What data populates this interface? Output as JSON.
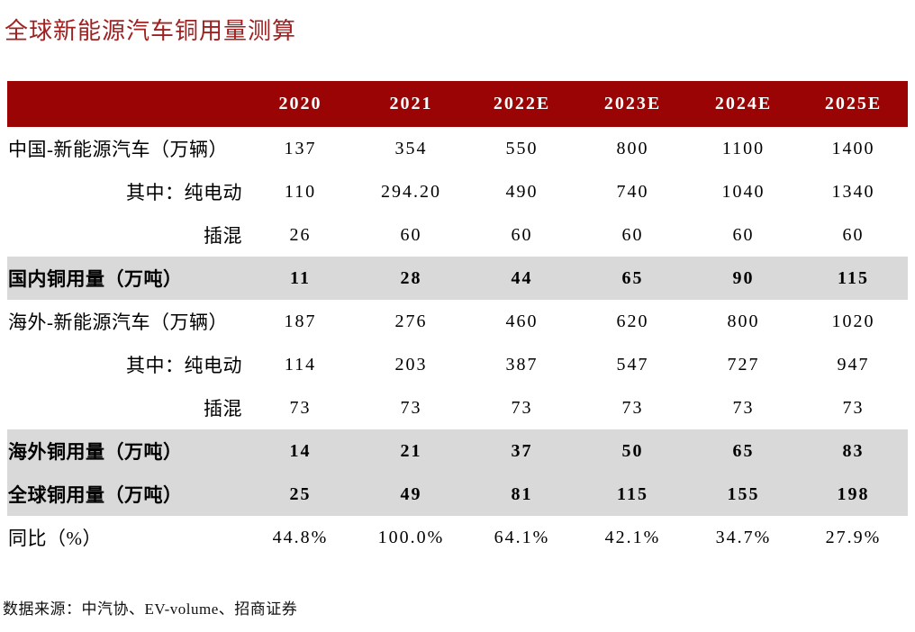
{
  "page": {
    "title": "全球新能源汽车铜用量测算",
    "source": "数据来源：中汽协、EV-volume、招商证券"
  },
  "colors": {
    "header_bg": "#9A0404",
    "title_red": "#A02121",
    "highlight_bg": "#D9D9D9",
    "header_text": "#FFFFFF"
  },
  "chart_data": {
    "type": "table",
    "title": "全球新能源汽车铜用量测算",
    "columns": [
      "",
      "2020",
      "2021",
      "2022E",
      "2023E",
      "2024E",
      "2025E"
    ],
    "rows": [
      {
        "label": "中国-新能源汽车（万辆）",
        "values": [
          "137",
          "354",
          "550",
          "800",
          "1100",
          "1400"
        ],
        "style": "plain",
        "align": "left"
      },
      {
        "label": "其中：纯电动",
        "values": [
          "110",
          "294.20",
          "490",
          "740",
          "1040",
          "1340"
        ],
        "style": "plain",
        "align": "right"
      },
      {
        "label": "插混",
        "values": [
          "26",
          "60",
          "60",
          "60",
          "60",
          "60"
        ],
        "style": "plain",
        "align": "right"
      },
      {
        "label": "国内铜用量（万吨）",
        "values": [
          "11",
          "28",
          "44",
          "65",
          "90",
          "115"
        ],
        "style": "highlight",
        "align": "left"
      },
      {
        "label": "海外-新能源汽车（万辆）",
        "values": [
          "187",
          "276",
          "460",
          "620",
          "800",
          "1020"
        ],
        "style": "plain",
        "align": "left"
      },
      {
        "label": "其中：纯电动",
        "values": [
          "114",
          "203",
          "387",
          "547",
          "727",
          "947"
        ],
        "style": "plain",
        "align": "right"
      },
      {
        "label": "插混",
        "values": [
          "73",
          "73",
          "73",
          "73",
          "73",
          "73"
        ],
        "style": "plain",
        "align": "right"
      },
      {
        "label": "海外铜用量（万吨）",
        "values": [
          "14",
          "21",
          "37",
          "50",
          "65",
          "83"
        ],
        "style": "highlight",
        "align": "left"
      },
      {
        "label": "全球铜用量（万吨）",
        "values": [
          "25",
          "49",
          "81",
          "115",
          "155",
          "198"
        ],
        "style": "highlight",
        "align": "left"
      },
      {
        "label": "同比（%）",
        "values": [
          "44.8%",
          "100.0%",
          "64.1%",
          "42.1%",
          "34.7%",
          "27.9%"
        ],
        "style": "plain",
        "align": "left"
      }
    ]
  }
}
